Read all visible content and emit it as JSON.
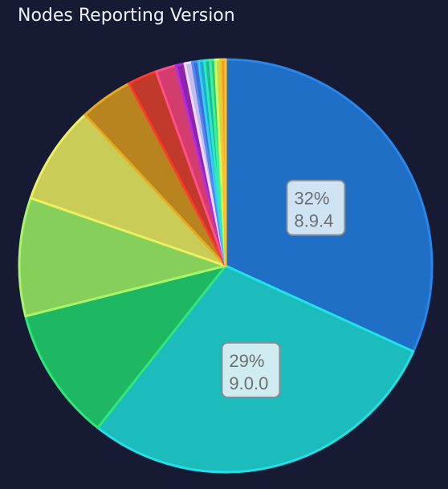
{
  "chart_data": {
    "type": "pie",
    "title": "Nodes Reporting Version",
    "slices": [
      {
        "label": "8.9.4",
        "value": 32.0,
        "color": "#1e6fc5",
        "stroke": "#2a86e8",
        "show_label": true,
        "pct_text": "32%"
      },
      {
        "label": "9.0.0",
        "value": 29.0,
        "color": "#1dbcbc",
        "stroke": "#22e0e8",
        "show_label": true,
        "pct_text": "29%"
      },
      {
        "value": 10.5,
        "color": "#1fb862",
        "stroke": "#2ee67a"
      },
      {
        "value": 9.3,
        "color": "#86cf5b",
        "stroke": "#a8f56a"
      },
      {
        "value": 7.8,
        "color": "#c9cc57",
        "stroke": "#ecf060"
      },
      {
        "value": 4.2,
        "color": "#b88420",
        "stroke": "#e8a820"
      },
      {
        "value": 2.3,
        "color": "#c0392b",
        "stroke": "#ff3a2a"
      },
      {
        "value": 1.6,
        "color": "#d23d6e",
        "stroke": "#ff4f8a"
      },
      {
        "value": 0.7,
        "color": "#8e24aa",
        "stroke": "#b02ee0"
      },
      {
        "value": 0.6,
        "color": "#c8bce8",
        "stroke": "#ece0ff"
      },
      {
        "value": 0.5,
        "color": "#3b6fd8",
        "stroke": "#4f8af8"
      },
      {
        "value": 0.45,
        "color": "#22a8c8",
        "stroke": "#30d0f0"
      },
      {
        "value": 0.45,
        "color": "#1fb89a",
        "stroke": "#2ee8c0"
      },
      {
        "value": 0.4,
        "color": "#2fc87a",
        "stroke": "#3ef098"
      },
      {
        "value": 0.4,
        "color": "#b8e04a",
        "stroke": "#d8ff58"
      },
      {
        "value": 0.4,
        "color": "#e8a020",
        "stroke": "#ffc030"
      }
    ]
  }
}
